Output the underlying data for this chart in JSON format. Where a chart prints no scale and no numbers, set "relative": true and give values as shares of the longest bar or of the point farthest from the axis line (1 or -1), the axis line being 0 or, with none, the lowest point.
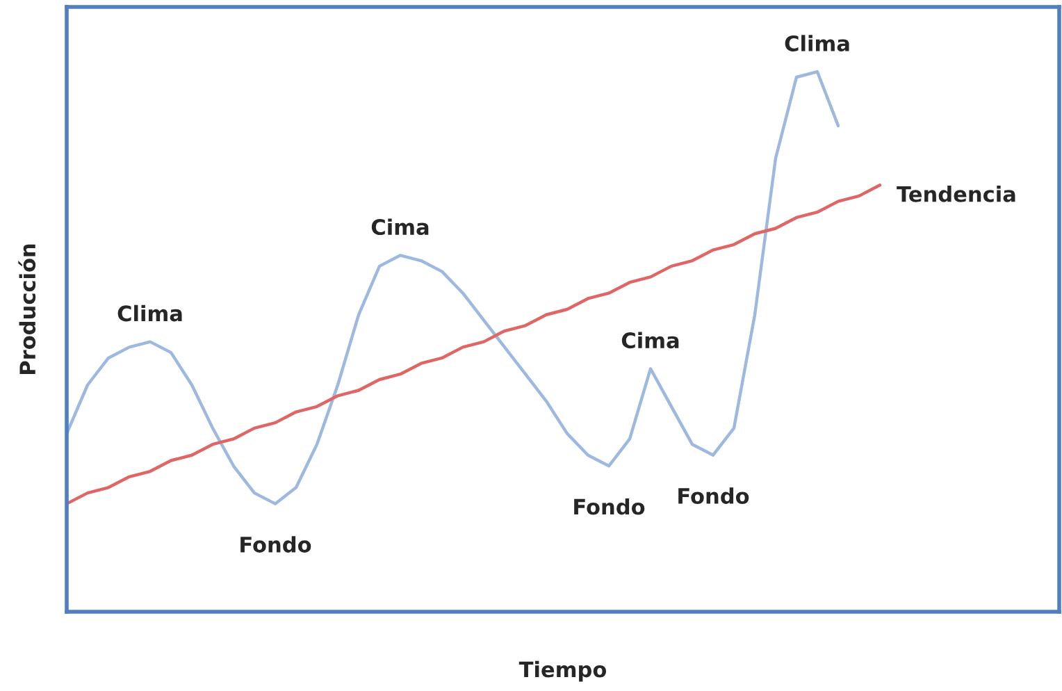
{
  "chart_data": {
    "type": "line",
    "relative": true,
    "xlabel": "Tiempo",
    "ylabel": "Producción",
    "categories": [
      null,
      null,
      null,
      null,
      null,
      null,
      null,
      null,
      null,
      null,
      null,
      null,
      null,
      null,
      null,
      null,
      null,
      null,
      null,
      null,
      null,
      null,
      null,
      null,
      null,
      null,
      null,
      null,
      null,
      null,
      null,
      null,
      null,
      null,
      null,
      null,
      null,
      null,
      null,
      null
    ],
    "series": [
      {
        "color": "#9db9e0",
        "values": [
          0.33,
          0.42,
          0.47,
          0.49,
          0.5,
          0.48,
          0.42,
          0.34,
          0.27,
          0.22,
          0.2,
          0.23,
          0.31,
          0.42,
          0.55,
          0.64,
          0.66,
          0.65,
          0.63,
          0.59,
          0.54,
          0.49,
          0.44,
          0.39,
          0.33,
          0.29,
          0.27,
          0.32,
          0.45,
          0.38,
          0.31,
          0.29,
          0.34,
          0.55,
          0.84,
          0.99,
          1.0,
          0.9,
          null,
          null
        ]
      },
      {
        "name": "Tendencia",
        "color": "#e06666",
        "values": [
          0.2,
          0.22,
          0.23,
          0.25,
          0.26,
          0.28,
          0.29,
          0.31,
          0.32,
          0.34,
          0.35,
          0.37,
          0.38,
          0.4,
          0.41,
          0.43,
          0.44,
          0.46,
          0.47,
          0.49,
          0.5,
          0.52,
          0.53,
          0.55,
          0.56,
          0.58,
          0.59,
          0.61,
          0.62,
          0.64,
          0.65,
          0.67,
          0.68,
          0.7,
          0.71,
          0.73,
          0.74,
          0.76,
          0.77,
          0.79
        ]
      }
    ],
    "annotations": [
      "Clima",
      "Fondo",
      "Cima",
      "Fondo",
      "Cima",
      "Fondo",
      "Clima"
    ],
    "grid": false,
    "legend": false,
    "marker": "none",
    "line_style": "solid"
  }
}
